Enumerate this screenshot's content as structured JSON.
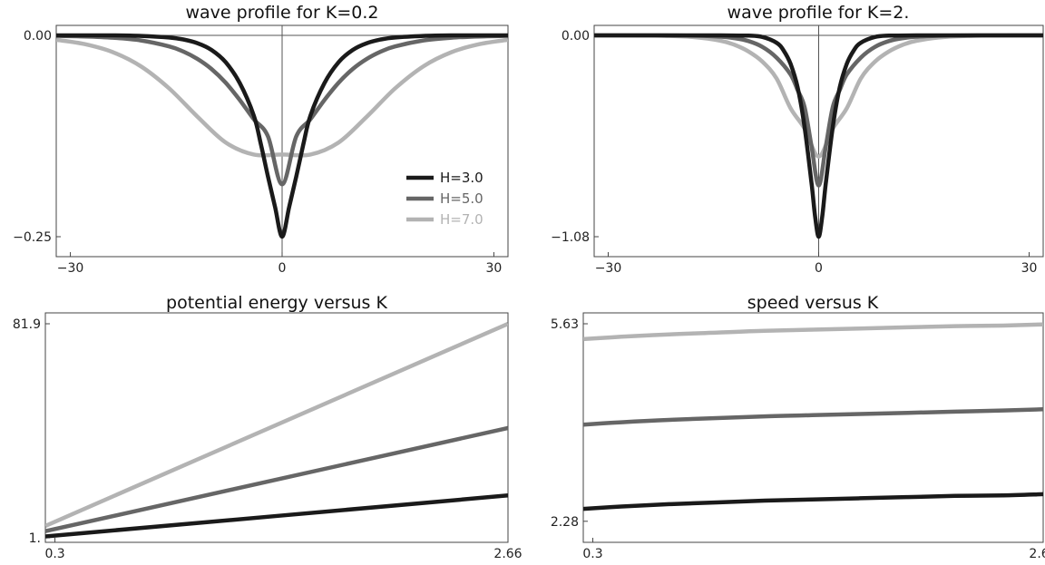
{
  "chart_data": [
    {
      "type": "line",
      "title": "wave profile for K=0.2",
      "xlim": [
        -32,
        32
      ],
      "ylim": [
        -0.25,
        0.0
      ],
      "xticks": [
        {
          "v": -30,
          "label": "-30"
        },
        {
          "v": 0,
          "label": "0"
        },
        {
          "v": 30,
          "label": "30"
        }
      ],
      "yticks": [
        {
          "v": 0.0,
          "label": "0.00"
        },
        {
          "v": -0.25,
          "label": "-0.25"
        }
      ],
      "zero_axis_x": 0,
      "legend_placement": "right",
      "legend": [
        "H=3.0",
        "H=5.0",
        "H=7.0"
      ],
      "series": [
        {
          "name": "H=3.0",
          "color": "#1a1a1a",
          "x": [
            -32,
            -28,
            -24,
            -20,
            -16,
            -14,
            -12,
            -10,
            -8,
            -6,
            -4,
            -3,
            -2,
            -1,
            0,
            1,
            2,
            3,
            4,
            6,
            8,
            10,
            12,
            14,
            16,
            20,
            24,
            28,
            32
          ],
          "values": [
            0,
            0,
            0,
            -0.0007,
            -0.0027,
            -0.0051,
            -0.0097,
            -0.0181,
            -0.0333,
            -0.0592,
            -0.1,
            -0.1357,
            -0.1752,
            -0.2129,
            -0.25,
            -0.2129,
            -0.1752,
            -0.1357,
            -0.1,
            -0.0592,
            -0.0333,
            -0.0181,
            -0.0097,
            -0.0051,
            -0.0027,
            -0.0007,
            0,
            0,
            0
          ]
        },
        {
          "name": "H=5.0",
          "color": "#666666",
          "x": [
            -32,
            -28,
            -24,
            -20,
            -16,
            -14,
            -12,
            -10,
            -8,
            -6,
            -4,
            -2,
            0,
            2,
            4,
            6,
            8,
            10,
            12,
            14,
            16,
            20,
            24,
            28,
            32
          ],
          "values": [
            -0.0006,
            -0.0013,
            -0.0029,
            -0.0063,
            -0.0137,
            -0.0201,
            -0.0292,
            -0.0418,
            -0.0588,
            -0.0802,
            -0.1043,
            -0.1255,
            -0.185,
            -0.1255,
            -0.1043,
            -0.0802,
            -0.0588,
            -0.0418,
            -0.0292,
            -0.0201,
            -0.0137,
            -0.0063,
            -0.0029,
            -0.0013,
            -0.0006
          ]
        },
        {
          "name": "H=7.0",
          "color": "#b3b3b3",
          "x": [
            -32,
            -28,
            -24,
            -20,
            -16,
            -12,
            -8,
            -4,
            0,
            4,
            8,
            12,
            16,
            20,
            24,
            28,
            32
          ],
          "values": [
            -0.0055,
            -0.0108,
            -0.0208,
            -0.0385,
            -0.0659,
            -0.1009,
            -0.133,
            -0.148,
            -0.148,
            -0.148,
            -0.133,
            -0.1009,
            -0.0659,
            -0.0385,
            -0.0208,
            -0.0108,
            -0.0055
          ]
        }
      ]
    },
    {
      "type": "line",
      "title": "wave profile for K=2.",
      "xlim": [
        -32,
        32
      ],
      "ylim": [
        -1.08,
        0.0
      ],
      "xticks": [
        {
          "v": -30,
          "label": "-30"
        },
        {
          "v": 0,
          "label": "0"
        },
        {
          "v": 30,
          "label": "30"
        }
      ],
      "yticks": [
        {
          "v": 0.0,
          "label": "0.00"
        },
        {
          "v": -1.08,
          "label": "-1.08"
        }
      ],
      "zero_axis_x": 0,
      "series": [
        {
          "name": "H=3.0",
          "color": "#1a1a1a",
          "x": [
            -32,
            -20,
            -14,
            -10,
            -8,
            -6,
            -5,
            -4,
            -3,
            -2,
            -1,
            -0.5,
            0,
            0.5,
            1,
            2,
            3,
            4,
            5,
            6,
            8,
            10,
            14,
            20,
            32
          ],
          "values": [
            0,
            0,
            0,
            -0.0017,
            -0.0087,
            -0.0397,
            -0.081,
            -0.1538,
            -0.279,
            -0.4941,
            -0.8,
            -0.9731,
            -1.08,
            -0.9731,
            -0.8,
            -0.4941,
            -0.279,
            -0.1538,
            -0.081,
            -0.0397,
            -0.0087,
            -0.0017,
            0,
            0,
            0
          ]
        },
        {
          "name": "H=5.0",
          "color": "#666666",
          "x": [
            -32,
            -24,
            -18,
            -14,
            -12,
            -10,
            -8,
            -6,
            -4,
            -3,
            -2,
            -1,
            0,
            1,
            2,
            3,
            4,
            6,
            8,
            10,
            12,
            14,
            18,
            24,
            32
          ],
          "values": [
            0,
            0,
            -0.0018,
            -0.0073,
            -0.015,
            -0.0308,
            -0.0621,
            -0.1198,
            -0.2103,
            -0.2938,
            -0.3858,
            -0.6,
            -0.805,
            -0.6,
            -0.3858,
            -0.2938,
            -0.2103,
            -0.1198,
            -0.0621,
            -0.0308,
            -0.015,
            -0.0073,
            -0.0018,
            0,
            0
          ]
        },
        {
          "name": "H=7.0",
          "color": "#b3b3b3",
          "x": [
            -32,
            -26,
            -22,
            -18,
            -14,
            -12,
            -10,
            -8,
            -6,
            -4,
            -2,
            0,
            2,
            4,
            6,
            8,
            10,
            12,
            14,
            18,
            22,
            26,
            32
          ],
          "values": [
            0,
            -0.0007,
            -0.0025,
            -0.0086,
            -0.0286,
            -0.0506,
            -0.0867,
            -0.1417,
            -0.2317,
            -0.3917,
            -0.5,
            -0.65,
            -0.5,
            -0.3917,
            -0.2317,
            -0.1417,
            -0.0867,
            -0.0506,
            -0.0286,
            -0.0086,
            -0.0025,
            -0.0007,
            0
          ]
        }
      ]
    },
    {
      "type": "line",
      "title": "potential energy versus K",
      "xlim": [
        0.25,
        2.66
      ],
      "ylim": [
        1.0,
        81.9
      ],
      "xticks": [
        {
          "v": 0.3,
          "label": "0.3"
        },
        {
          "v": 2.66,
          "label": "2.66"
        }
      ],
      "yticks": [
        {
          "v": 81.9,
          "label": "81.9"
        },
        {
          "v": 1.0,
          "label": "1."
        }
      ],
      "series": [
        {
          "name": "H=3.0",
          "color": "#1a1a1a",
          "x": [
            0.25,
            2.66
          ],
          "values": [
            1.5,
            17.0
          ]
        },
        {
          "name": "H=5.0",
          "color": "#666666",
          "x": [
            0.25,
            2.66
          ],
          "values": [
            3.5,
            42.5
          ]
        },
        {
          "name": "H=7.0",
          "color": "#b3b3b3",
          "x": [
            0.25,
            2.66
          ],
          "values": [
            5.5,
            81.9
          ]
        }
      ]
    },
    {
      "type": "line",
      "title": "speed versus K",
      "xlim": [
        0.25,
        2.66
      ],
      "ylim": [
        2.0,
        5.63
      ],
      "xticks": [
        {
          "v": 0.3,
          "label": "0.3"
        },
        {
          "v": 2.66,
          "label": "2.66"
        }
      ],
      "yticks": [
        {
          "v": 5.63,
          "label": "5.63"
        },
        {
          "v": 2.28,
          "label": "2.28"
        }
      ],
      "series": [
        {
          "name": "H=3.0",
          "color": "#1a1a1a",
          "x": [
            0.25,
            0.45,
            0.7,
            0.95,
            1.2,
            1.45,
            1.7,
            1.95,
            2.2,
            2.45,
            2.66
          ],
          "values": [
            2.49,
            2.53,
            2.57,
            2.6,
            2.63,
            2.65,
            2.67,
            2.69,
            2.71,
            2.72,
            2.74
          ]
        },
        {
          "name": "H=5.0",
          "color": "#666666",
          "x": [
            0.25,
            0.45,
            0.7,
            0.95,
            1.2,
            1.45,
            1.7,
            1.95,
            2.2,
            2.45,
            2.66
          ],
          "values": [
            3.92,
            3.96,
            4.0,
            4.03,
            4.06,
            4.08,
            4.1,
            4.12,
            4.14,
            4.16,
            4.18
          ]
        },
        {
          "name": "H=7.0",
          "color": "#b3b3b3",
          "x": [
            0.25,
            0.45,
            0.7,
            0.95,
            1.2,
            1.45,
            1.7,
            1.95,
            2.2,
            2.45,
            2.66
          ],
          "values": [
            5.37,
            5.41,
            5.45,
            5.48,
            5.51,
            5.53,
            5.55,
            5.57,
            5.59,
            5.6,
            5.62
          ]
        }
      ]
    }
  ]
}
